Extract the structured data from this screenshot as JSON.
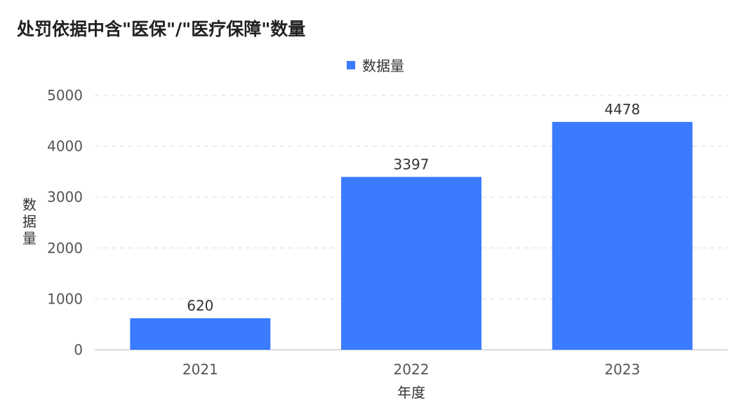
{
  "chart_data": {
    "type": "bar",
    "title": "处罚依据中含\"医保\"/\"医疗保障\"数量",
    "categories": [
      "2021",
      "2022",
      "2023"
    ],
    "series": [
      {
        "name": "数据量",
        "values": [
          620,
          3397,
          4478
        ],
        "color": "#3a7bff"
      }
    ],
    "xlabel": "年度",
    "ylabel": "数据量",
    "ylim": [
      0,
      5000
    ],
    "yticks": [
      0,
      1000,
      2000,
      3000,
      4000,
      5000
    ],
    "grid": true,
    "legend_position": "top-center"
  }
}
